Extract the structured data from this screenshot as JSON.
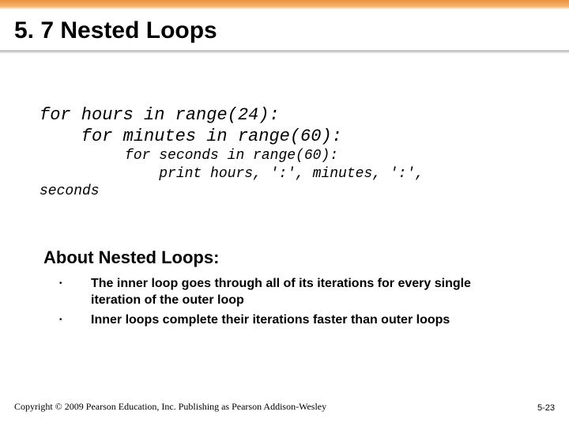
{
  "colors": {
    "gradient_top": "#e8913d",
    "gradient_mid": "#f5b571",
    "background": "#ffffff",
    "text": "#000000",
    "rule": "#888888"
  },
  "title": "5. 7 Nested Loops",
  "code": {
    "line1": "for hours in range(24):",
    "line2": "    for minutes in range(60):",
    "line3": "          for seconds in range(60):",
    "line4": "              print hours, ':', minutes, ':',",
    "line5": "seconds"
  },
  "subheading": "About Nested Loops:",
  "bullets": [
    "The inner loop goes through all of its iterations for every single iteration of the outer loop",
    "Inner loops complete their iterations faster than outer loops"
  ],
  "footer": {
    "copyright": "Copyright © 2009 Pearson Education, Inc. Publishing as Pearson Addison-Wesley",
    "page": "5-23"
  }
}
